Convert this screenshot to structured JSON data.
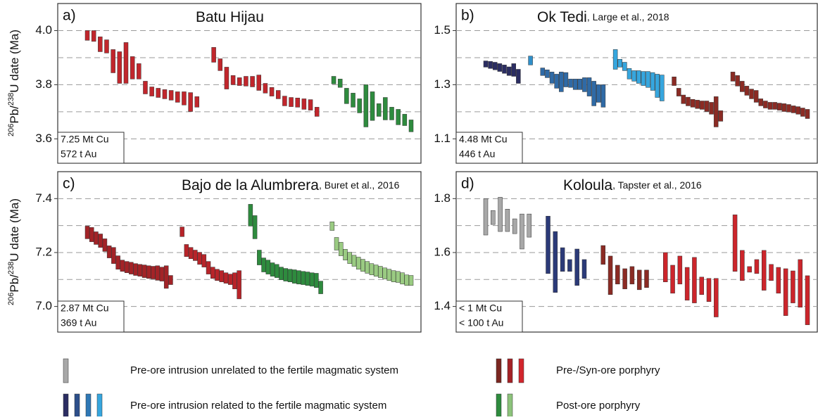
{
  "y_axis_label": {
    "mass1": "206",
    "el1": "Pb/",
    "mass2": "238",
    "el2": "U date (Ma)"
  },
  "chart_data": [
    {
      "type": "range_bar",
      "letter": "a)",
      "title": "Batu Hijau",
      "citation": null,
      "deposit": [
        "7.25 Mt Cu",
        "572 t Au"
      ],
      "ylim": [
        3.51,
        4.1
      ],
      "yticks": [
        {
          "value": 4.0,
          "label": "4.0"
        },
        {
          "value": 3.8,
          "label": "3.8"
        },
        {
          "value": 3.6,
          "label": "3.6"
        }
      ],
      "minor_gridlines": [
        3.9,
        3.7
      ],
      "grid": true,
      "series": [
        {
          "color": "#c1262c",
          "low": [
            3.964,
            3.96,
            3.922,
            3.917,
            3.844,
            3.805,
            3.805,
            3.821,
            3.821,
            3.766,
            3.758,
            3.753,
            3.748,
            3.743,
            3.735,
            3.725,
            3.701,
            3.717
          ],
          "high": [
            4.0,
            4.0,
            3.977,
            3.966,
            3.93,
            3.922,
            3.956,
            3.904,
            3.878,
            3.813,
            3.792,
            3.787,
            3.782,
            3.779,
            3.774,
            3.774,
            3.771,
            3.756
          ]
        },
        {
          "color": "#c1262c",
          "low": [
            3.883,
            3.852,
            3.784,
            3.8,
            3.797,
            3.795,
            3.792,
            3.779,
            3.769,
            3.758,
            3.748,
            3.722,
            3.719,
            3.717,
            3.709,
            3.706,
            3.683
          ],
          "high": [
            3.938,
            3.896,
            3.865,
            3.834,
            3.826,
            3.831,
            3.831,
            3.836,
            3.805,
            3.79,
            3.779,
            3.758,
            3.753,
            3.751,
            3.748,
            3.745,
            3.717
          ]
        },
        {
          "color": "#2e8b3e",
          "low": [
            3.803,
            3.79,
            3.73,
            3.717,
            3.696,
            3.644,
            3.668,
            3.683,
            3.67,
            3.67,
            3.652,
            3.649,
            3.626
          ],
          "high": [
            3.831,
            3.821,
            3.787,
            3.769,
            3.748,
            3.8,
            3.774,
            3.73,
            3.753,
            3.717,
            3.709,
            3.691,
            3.67
          ]
        }
      ]
    },
    {
      "type": "range_bar",
      "letter": "b)",
      "title": "Ok Tedi",
      "citation": ", Large et al., 2018",
      "deposit": [
        "4.48 Mt Cu",
        "446 t Au"
      ],
      "ylim": [
        1.01,
        1.6
      ],
      "yticks": [
        {
          "value": 1.5,
          "label": "1.5"
        },
        {
          "value": 1.3,
          "label": "1.3"
        },
        {
          "value": 1.1,
          "label": "1.1"
        }
      ],
      "minor_gridlines": [
        1.4,
        1.2
      ],
      "grid": true,
      "series": [
        {
          "color": "#2b2d62",
          "low": [
            1.365,
            1.36,
            1.355,
            1.349,
            1.342,
            1.334,
            1.331,
            1.305
          ],
          "high": [
            1.388,
            1.386,
            1.383,
            1.378,
            1.373,
            1.366,
            1.378,
            1.357
          ]
        },
        {
          "color": "#2f8fca",
          "low": [
            1.373
          ],
          "high": [
            1.406
          ]
        },
        {
          "color": "#2f6aa6",
          "low": [
            1.334,
            1.326,
            1.305,
            1.287,
            1.274,
            1.292,
            1.29,
            1.282,
            1.282,
            1.274,
            1.258,
            1.222,
            1.235,
            1.217
          ],
          "high": [
            1.362,
            1.355,
            1.347,
            1.339,
            1.347,
            1.345,
            1.321,
            1.321,
            1.321,
            1.326,
            1.326,
            1.313,
            1.3,
            1.3
          ]
        },
        {
          "color": "#36a6de",
          "low": [
            1.357,
            1.365,
            1.352,
            1.321,
            1.313,
            1.305,
            1.297,
            1.29,
            1.279,
            1.253,
            1.24
          ],
          "high": [
            1.43,
            1.394,
            1.383,
            1.36,
            1.352,
            1.352,
            1.349,
            1.349,
            1.345,
            1.339,
            1.336
          ]
        },
        {
          "color": "#8b2b24",
          "low": [
            1.297,
            1.258,
            1.23,
            1.222,
            1.217,
            1.212,
            1.209,
            1.201,
            1.191,
            1.144,
            1.165
          ],
          "high": [
            1.329,
            1.287,
            1.262,
            1.254,
            1.246,
            1.243,
            1.24,
            1.24,
            1.235,
            1.256,
            1.204
          ]
        },
        {
          "color": "#8b2b24",
          "low": [
            1.313,
            1.295,
            1.274,
            1.261,
            1.248,
            1.235,
            1.222,
            1.214,
            1.209,
            1.209,
            1.206,
            1.201,
            1.199,
            1.196,
            1.191,
            1.183,
            1.175
          ],
          "high": [
            1.347,
            1.334,
            1.313,
            1.295,
            1.284,
            1.279,
            1.248,
            1.24,
            1.235,
            1.235,
            1.232,
            1.23,
            1.227,
            1.222,
            1.219,
            1.214,
            1.209
          ]
        }
      ]
    },
    {
      "type": "range_bar",
      "letter": "c)",
      "title": "Bajo de la Alumbrera",
      "citation": ", Buret et al., 2016",
      "deposit": [
        "2.87 Mt Cu",
        "369 t Au"
      ],
      "ylim": [
        6.905,
        7.5
      ],
      "yticks": [
        {
          "value": 7.4,
          "label": "7.4"
        },
        {
          "value": 7.2,
          "label": "7.2"
        },
        {
          "value": 7.0,
          "label": "7.0"
        }
      ],
      "minor_gridlines": [
        7.3,
        7.1
      ],
      "grid": true,
      "series": [
        {
          "color": "#a32327",
          "low": [
            7.251,
            7.24,
            7.23,
            7.219,
            7.204,
            7.18,
            7.159,
            7.138,
            7.13,
            7.125,
            7.12,
            7.115,
            7.112,
            7.107,
            7.104,
            7.102,
            7.097,
            7.094,
            7.067,
            7.081
          ],
          "high": [
            7.298,
            7.293,
            7.277,
            7.269,
            7.251,
            7.225,
            7.219,
            7.188,
            7.172,
            7.167,
            7.164,
            7.159,
            7.156,
            7.154,
            7.151,
            7.149,
            7.151,
            7.146,
            7.151,
            7.115
          ]
        },
        {
          "color": "#b82429",
          "low": [
            7.259,
            7.185,
            7.177,
            7.17,
            7.156,
            7.146,
            7.12,
            7.104,
            7.096,
            7.091,
            7.086,
            7.081,
            7.065,
            7.028
          ],
          "high": [
            7.295,
            7.23,
            7.219,
            7.209,
            7.201,
            7.193,
            7.167,
            7.146,
            7.138,
            7.133,
            7.125,
            7.12,
            7.125,
            7.133
          ]
        },
        {
          "color": "#2e8b3e",
          "low": [
            7.298,
            7.251,
            7.154,
            7.128,
            7.12,
            7.112,
            7.107,
            7.099,
            7.094,
            7.091,
            7.086,
            7.083,
            7.081,
            7.078,
            7.075,
            7.07,
            7.047
          ],
          "high": [
            7.379,
            7.337,
            7.209,
            7.18,
            7.172,
            7.162,
            7.156,
            7.146,
            7.141,
            7.138,
            7.136,
            7.133,
            7.13,
            7.128,
            7.125,
            7.123,
            7.094
          ]
        },
        {
          "color": "#9acb82",
          "low": [
            7.282,
            7.209,
            7.188,
            7.172,
            7.159,
            7.149,
            7.138,
            7.13,
            7.123,
            7.117,
            7.112,
            7.107,
            7.102,
            7.096,
            7.091,
            7.089,
            7.083,
            7.078,
            7.078
          ],
          "high": [
            7.314,
            7.256,
            7.238,
            7.212,
            7.201,
            7.19,
            7.183,
            7.175,
            7.167,
            7.159,
            7.154,
            7.149,
            7.143,
            7.138,
            7.133,
            7.13,
            7.125,
            7.117,
            7.115
          ]
        }
      ]
    },
    {
      "type": "range_bar",
      "letter": "d)",
      "title": "Koloula",
      "citation": ", Tapster et al., 2016",
      "deposit": [
        "< 1 Mt Cu",
        "< 100 t Au"
      ],
      "ylim": [
        1.305,
        1.9
      ],
      "yticks": [
        {
          "value": 1.8,
          "label": "1.8"
        },
        {
          "value": 1.6,
          "label": "1.6"
        },
        {
          "value": 1.4,
          "label": "1.4"
        }
      ],
      "minor_gridlines": [
        1.7,
        1.5
      ],
      "grid": true,
      "series": [
        {
          "color": "#a8a8a8",
          "low": [
            1.665,
            1.704,
            1.678,
            1.678,
            1.67,
            1.613,
            1.657
          ],
          "high": [
            1.8,
            1.756,
            1.805,
            1.761,
            1.725,
            1.743,
            1.743
          ]
        },
        {
          "color": "#2b3a78",
          "low": [
            1.522,
            1.452,
            1.53,
            1.53,
            1.478,
            1.504
          ],
          "high": [
            1.735,
            1.678,
            1.618,
            1.574,
            1.613,
            1.574
          ]
        },
        {
          "color": "#8b2b24",
          "low": [
            1.556,
            1.444,
            1.483,
            1.465,
            1.483,
            1.462,
            1.47
          ],
          "high": [
            1.626,
            1.587,
            1.553,
            1.54,
            1.548,
            1.535,
            1.535
          ]
        },
        {
          "color": "#cc252b",
          "low": [
            1.491,
            1.449,
            1.483,
            1.423,
            1.413,
            1.444,
            1.418,
            1.361
          ],
          "high": [
            1.6,
            1.553,
            1.587,
            1.545,
            1.582,
            1.509,
            1.504,
            1.504
          ]
        },
        {
          "color": "#cc252b",
          "low": [
            1.53,
            1.496,
            1.527,
            1.522,
            1.46,
            1.496,
            1.449,
            1.366,
            1.413,
            1.397,
            1.332
          ],
          "high": [
            1.74,
            1.608,
            1.548,
            1.574,
            1.608,
            1.556,
            1.545,
            1.54,
            1.532,
            1.574,
            1.514
          ]
        }
      ]
    }
  ],
  "legend": [
    {
      "label": "Pre-ore intrusion unrelated to the fertile magmatic system",
      "colors": [
        "#a8a8a8"
      ]
    },
    {
      "label": "Pre-ore intrusion related to the fertile magmatic system",
      "colors": [
        "#2b2d62",
        "#2d4f8a",
        "#2f78b5",
        "#36a6de"
      ]
    },
    {
      "label": "Pre-/Syn-ore porphyry",
      "colors": [
        "#7b2620",
        "#a52226",
        "#d2262c"
      ]
    },
    {
      "label": "Post-ore porphyry",
      "colors": [
        "#2e8b3e",
        "#8cc37b"
      ]
    }
  ]
}
